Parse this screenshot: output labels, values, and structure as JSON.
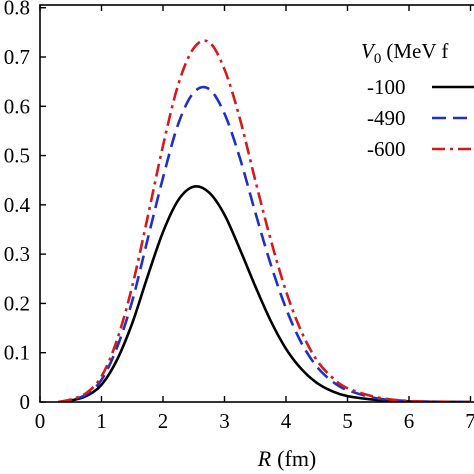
{
  "chart_data": {
    "type": "line",
    "title": "",
    "xlabel": "R (fm)",
    "xlabel_var": "R",
    "xlabel_unit": "(fm)",
    "ylabel": "",
    "xlim": [
      0,
      7
    ],
    "ylim": [
      0,
      0.8
    ],
    "x_ticks": [
      0,
      1,
      2,
      3,
      4,
      5,
      6,
      7
    ],
    "y_ticks": [
      0,
      0.1,
      0.2,
      0.3,
      0.4,
      0.5,
      0.6,
      0.7,
      0.8
    ],
    "x_tick_labels": [
      "0",
      "1",
      "2",
      "3",
      "4",
      "5",
      "6",
      "7"
    ],
    "y_tick_labels": [
      "0",
      "0.1",
      "0.2",
      "0.3",
      "0.4",
      "0.5",
      "0.6",
      "0.7",
      "0.8"
    ],
    "grid": false,
    "legend": {
      "placement": "top-right",
      "title_symbol": "V",
      "title_subscript": "0",
      "title_unit": "(MeV f",
      "entries": [
        "-100",
        "-490",
        "-600"
      ]
    },
    "series": [
      {
        "name": "-100",
        "color": "#000000",
        "style": "solid",
        "x": [
          0.3,
          0.5,
          0.75,
          1.0,
          1.25,
          1.5,
          1.75,
          2.0,
          2.25,
          2.5,
          2.75,
          3.0,
          3.25,
          3.5,
          3.75,
          4.0,
          4.25,
          4.5,
          4.75,
          5.0,
          5.5,
          6.0,
          6.5,
          7.0
        ],
        "y": [
          0.0,
          0.003,
          0.012,
          0.035,
          0.085,
          0.16,
          0.255,
          0.345,
          0.41,
          0.437,
          0.425,
          0.38,
          0.31,
          0.235,
          0.165,
          0.108,
          0.067,
          0.039,
          0.022,
          0.012,
          0.004,
          0.001,
          0.0003,
          0.0
        ]
      },
      {
        "name": "-490",
        "color": "#1f2fcc",
        "style": "dashed",
        "x": [
          0.3,
          0.5,
          0.75,
          1.0,
          1.25,
          1.5,
          1.75,
          2.0,
          2.25,
          2.5,
          2.75,
          3.0,
          3.25,
          3.5,
          3.75,
          4.0,
          4.25,
          4.5,
          4.75,
          5.0,
          5.5,
          6.0,
          6.5,
          7.0
        ],
        "y": [
          0.0,
          0.004,
          0.015,
          0.045,
          0.11,
          0.205,
          0.33,
          0.455,
          0.565,
          0.628,
          0.635,
          0.585,
          0.495,
          0.385,
          0.28,
          0.19,
          0.12,
          0.072,
          0.042,
          0.024,
          0.007,
          0.002,
          0.0005,
          0.0
        ]
      },
      {
        "name": "-600",
        "color": "#d7191c",
        "style": "dashdot",
        "x": [
          0.3,
          0.5,
          0.75,
          1.0,
          1.25,
          1.5,
          1.75,
          2.0,
          2.25,
          2.5,
          2.75,
          3.0,
          3.25,
          3.5,
          3.75,
          4.0,
          4.25,
          4.5,
          4.75,
          5.0,
          5.5,
          6.0,
          6.5,
          7.0
        ],
        "y": [
          0.0,
          0.005,
          0.018,
          0.052,
          0.125,
          0.235,
          0.375,
          0.52,
          0.645,
          0.718,
          0.73,
          0.675,
          0.575,
          0.45,
          0.33,
          0.225,
          0.143,
          0.085,
          0.05,
          0.028,
          0.009,
          0.002,
          0.0006,
          0.0
        ]
      }
    ]
  }
}
